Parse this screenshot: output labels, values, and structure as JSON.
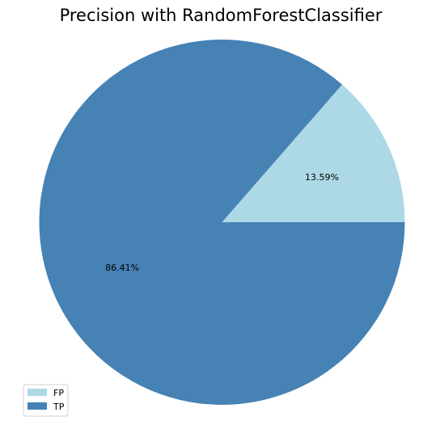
{
  "chart_data": {
    "type": "pie",
    "title": "Precision with RandomForestClassifier",
    "categories": [
      "FP",
      "TP"
    ],
    "values": [
      13.59,
      86.41
    ],
    "labels": [
      "13.59%",
      "86.41%"
    ],
    "colors": [
      "#add8e6",
      "#4682b4"
    ],
    "start_angle_deg": 0,
    "direction": "counterclockwise",
    "legend": {
      "placement": "bottom-left",
      "entries": [
        "FP",
        "TP"
      ]
    }
  }
}
